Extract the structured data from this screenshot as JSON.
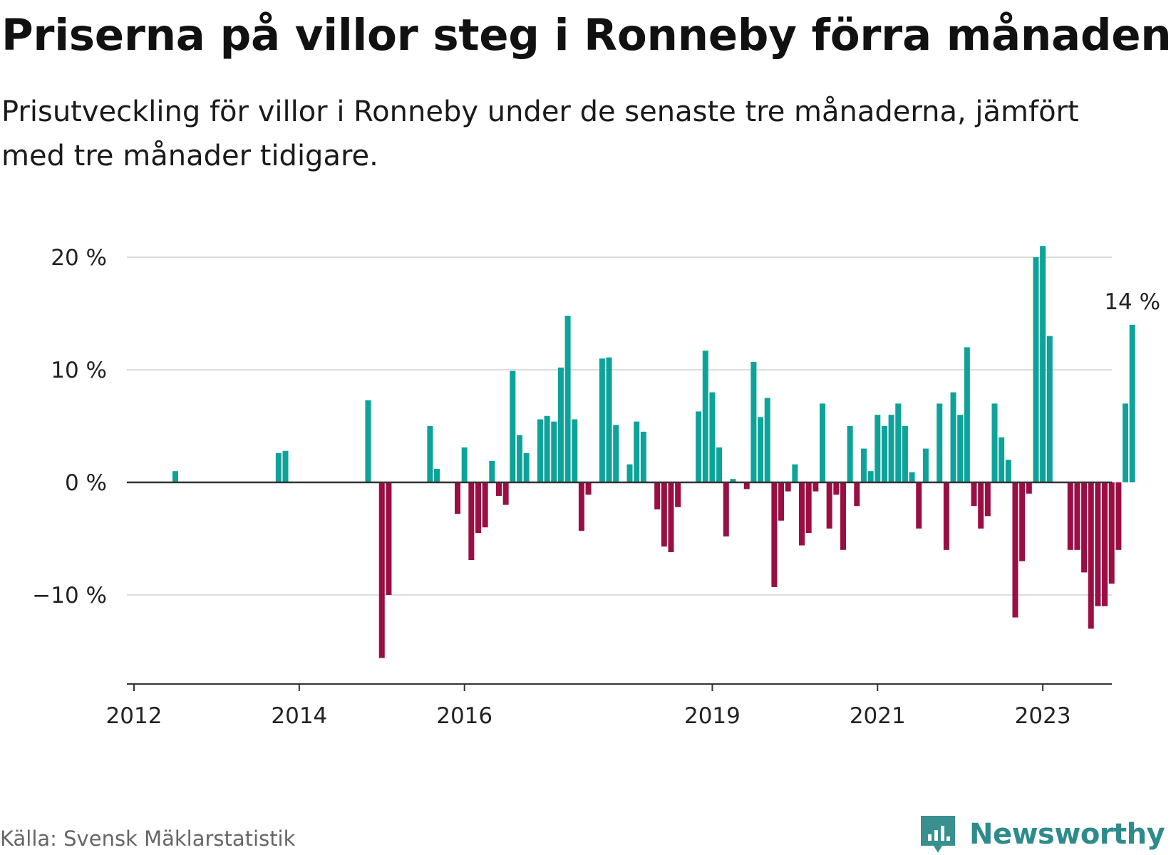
{
  "title": "Priserna på villor steg i Ronneby förra månaden",
  "subtitle": "Prisutveckling för villor i Ronneby under de senaste tre månaderna, jämfört med tre månader tidigare.",
  "source": "Källa: Svensk Mäklarstatistik",
  "brand": {
    "name": "Newsworthy",
    "icon": "newsworthy-logo-icon",
    "color": "#2e8b8b"
  },
  "colors": {
    "positive": "#0ea39a",
    "negative": "#9b0e43",
    "zero_line": "#333333",
    "grid": "#dddddd"
  },
  "chart_data": {
    "type": "bar",
    "x_start": "2012-01",
    "y_unit": "%",
    "ylim": [
      -18,
      21
    ],
    "yticks": [
      20,
      10,
      0,
      -10
    ],
    "ytick_labels": [
      "20 %",
      "10 %",
      "0 %",
      "−10 %"
    ],
    "xticks": [
      {
        "label": "2012",
        "month": "2012-01"
      },
      {
        "label": "2014",
        "month": "2014-01"
      },
      {
        "label": "2016",
        "month": "2016-01"
      },
      {
        "label": "2019",
        "month": "2019-01"
      },
      {
        "label": "2021",
        "month": "2021-01"
      },
      {
        "label": "2023",
        "month": "2023-01"
      }
    ],
    "grid": true,
    "last_value_label": "14 %",
    "values": [
      null,
      null,
      null,
      null,
      null,
      null,
      1,
      0,
      0,
      0,
      0,
      0,
      0,
      0,
      0,
      0,
      0,
      0,
      0,
      0,
      0,
      2.6,
      2.8,
      0,
      0,
      0,
      0,
      0,
      0,
      0,
      0,
      0,
      0,
      0,
      7.3,
      0,
      -15.6,
      -10,
      0,
      0,
      0,
      0,
      0,
      5,
      1.2,
      0,
      0,
      -2.8,
      3.1,
      -6.9,
      -4.5,
      -4,
      1.9,
      -1.2,
      -2,
      9.9,
      4.2,
      2.6,
      0,
      5.6,
      5.9,
      5.4,
      10.2,
      14.8,
      5.6,
      -4.3,
      -1.1,
      0,
      11,
      11.1,
      5.1,
      0,
      1.6,
      5.4,
      4.5,
      0,
      -2.4,
      -5.7,
      -6.2,
      -2.2,
      0,
      0,
      6.3,
      11.7,
      8,
      3.1,
      -4.8,
      0.3,
      0,
      -0.6,
      10.7,
      5.8,
      7.5,
      -9.3,
      -3.4,
      -0.8,
      1.6,
      -5.6,
      -4.5,
      -0.8,
      7,
      -4.1,
      -1.1,
      -6,
      5,
      -2.1,
      3,
      1,
      6,
      5,
      6,
      7,
      5,
      0.9,
      -4.1,
      3,
      0,
      7,
      -6,
      8,
      6,
      12,
      -2.1,
      -4.1,
      -3,
      7,
      4,
      2,
      -12,
      -7,
      -1,
      20,
      21,
      13,
      0,
      0,
      -6,
      -6,
      -8,
      -13,
      -11,
      -11,
      -9,
      -6,
      7,
      14
    ]
  }
}
